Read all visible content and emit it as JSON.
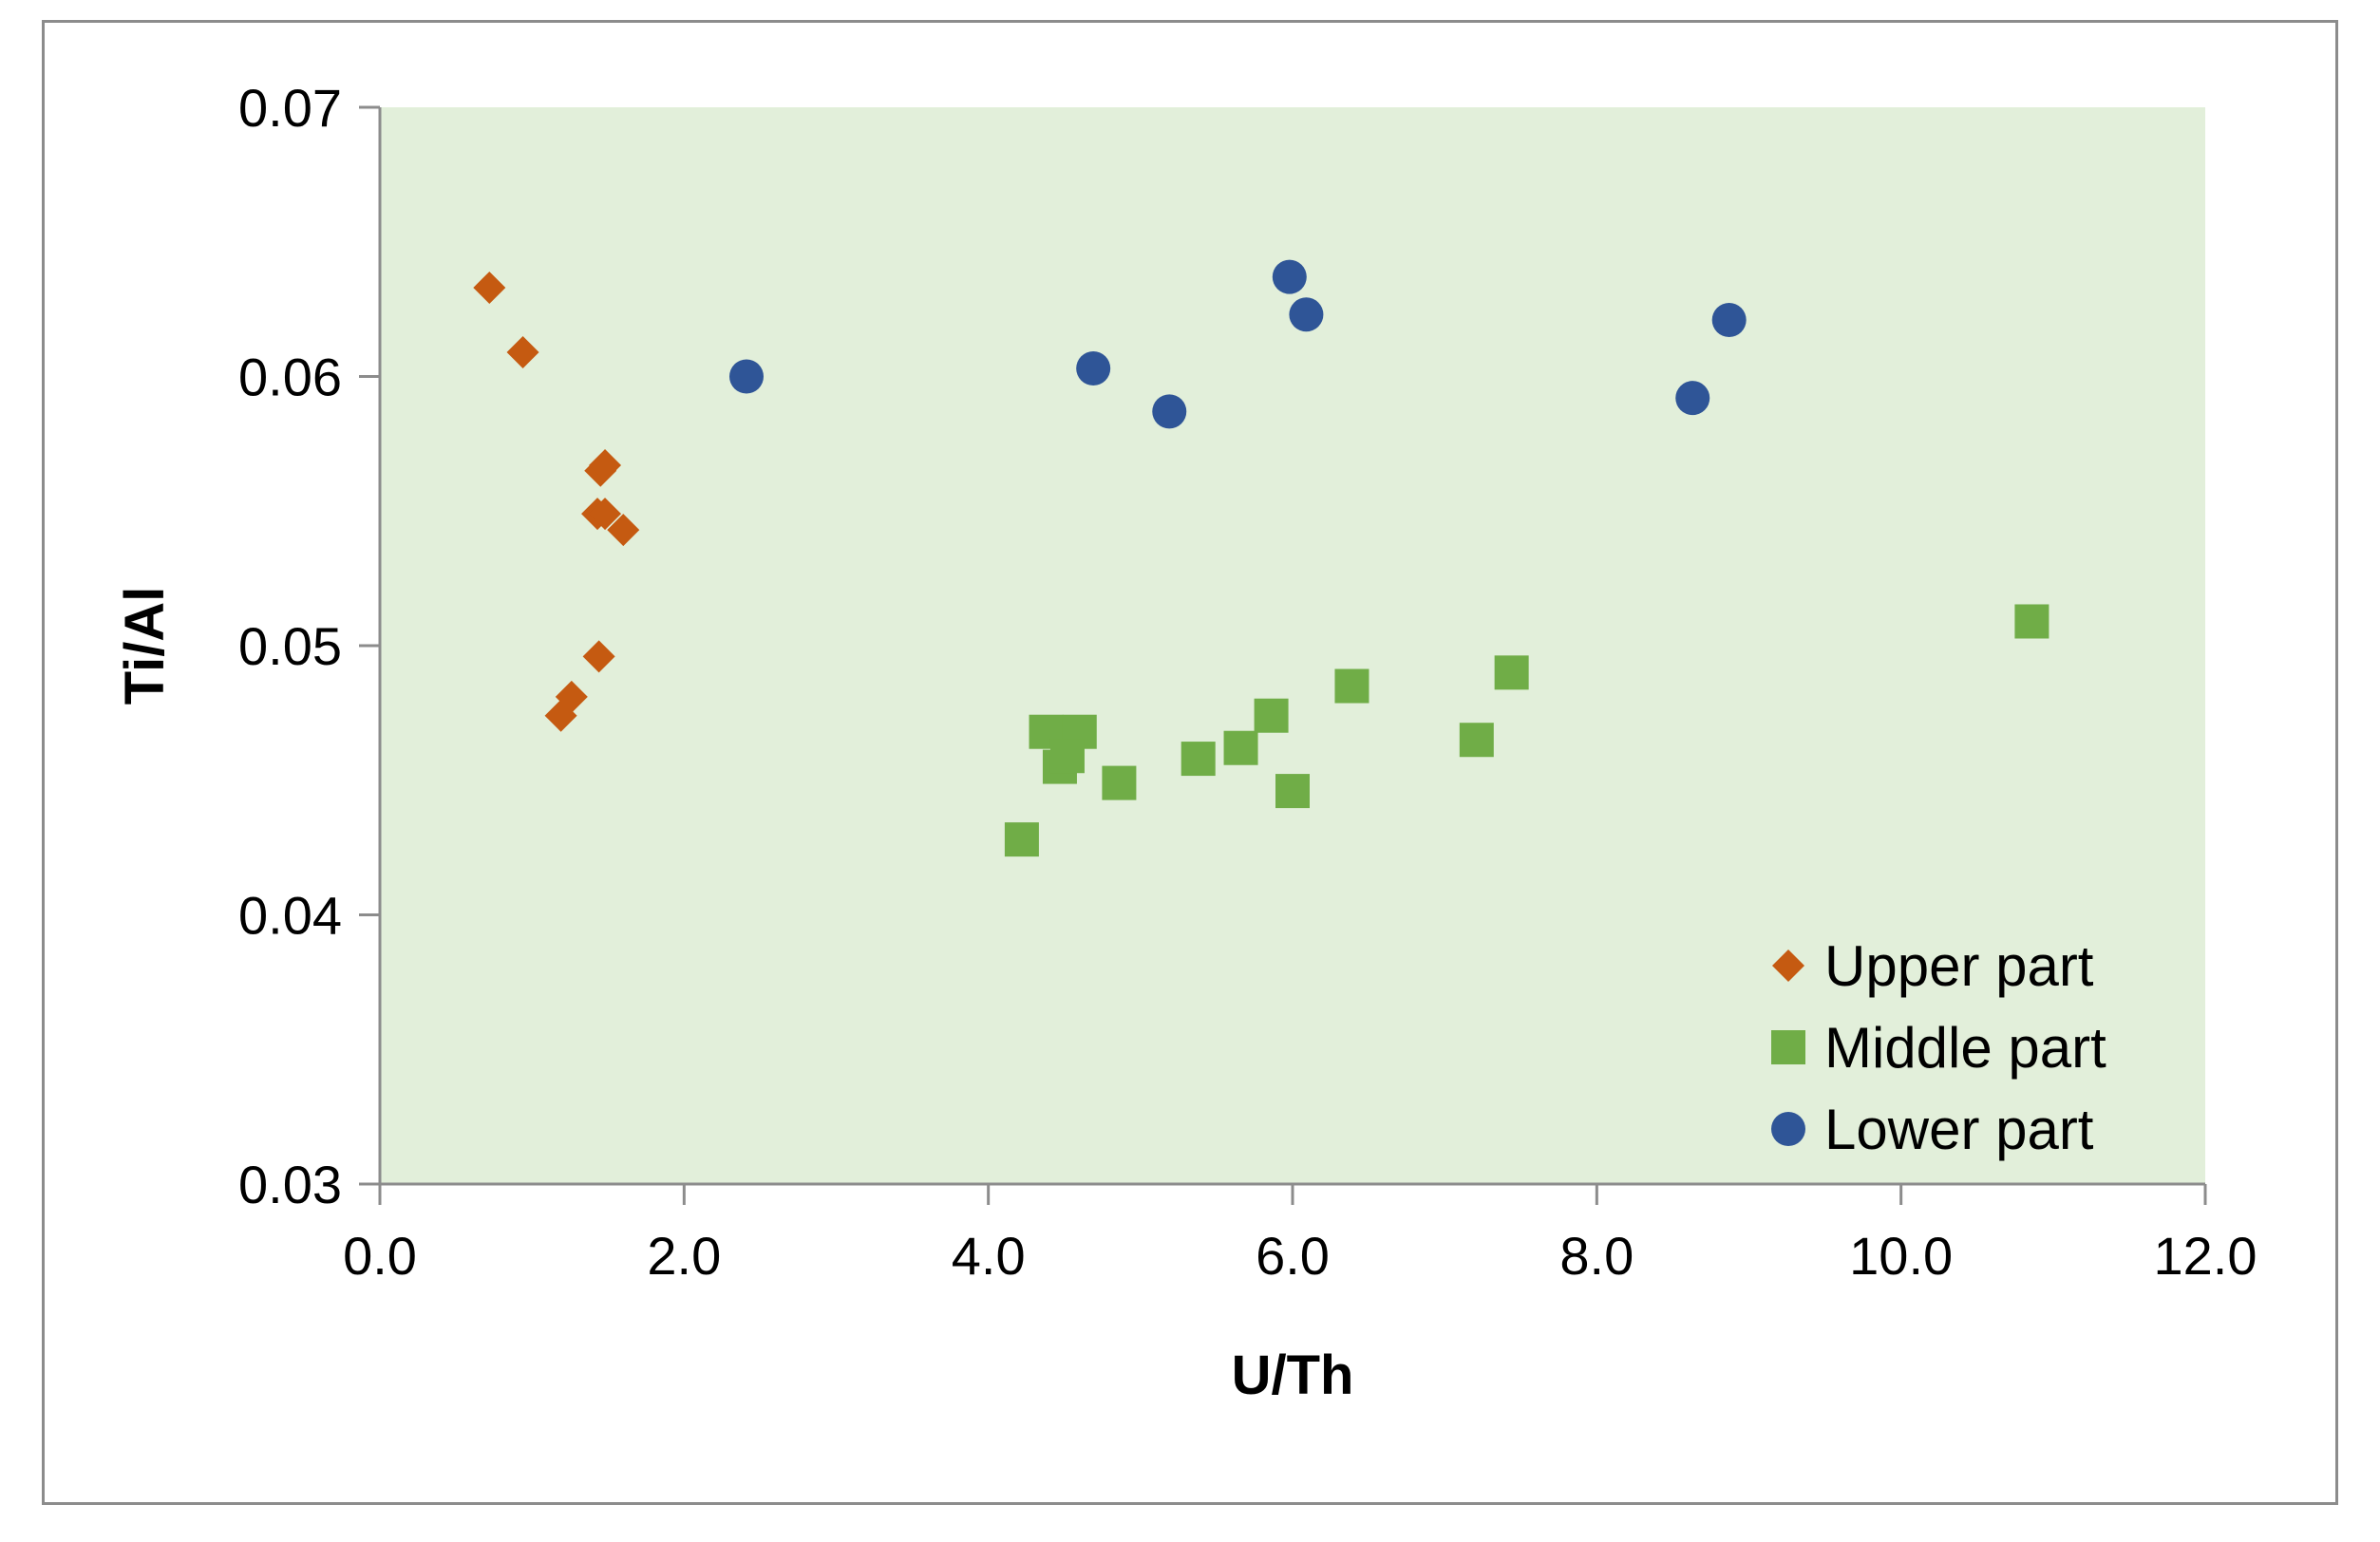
{
  "chart_data": {
    "type": "scatter",
    "xlabel": "U/Th",
    "ylabel": "Ti/Al",
    "xlim": [
      0,
      12
    ],
    "ylim": [
      0.03,
      0.07
    ],
    "x_ticks": [
      "0.0",
      "2.0",
      "4.0",
      "6.0",
      "8.0",
      "10.0",
      "12.0"
    ],
    "y_ticks": [
      "0.03",
      "0.04",
      "0.05",
      "0.06",
      "0.07"
    ],
    "x_tick_values": [
      0,
      2,
      4,
      6,
      8,
      10,
      12
    ],
    "y_tick_values": [
      0.03,
      0.04,
      0.05,
      0.06,
      0.07
    ],
    "plot_background": "#e2efda",
    "grid": false,
    "legend_position": "bottom-right",
    "series": [
      {
        "name": "Upper part",
        "marker": "diamond",
        "color": "#c55a11",
        "points": [
          [
            0.72,
            0.0633
          ],
          [
            0.94,
            0.0609
          ],
          [
            1.45,
            0.0565
          ],
          [
            1.48,
            0.0567
          ],
          [
            1.43,
            0.0549
          ],
          [
            1.48,
            0.0549
          ],
          [
            1.6,
            0.0543
          ],
          [
            1.44,
            0.0496
          ],
          [
            1.26,
            0.0481
          ],
          [
            1.19,
            0.0474
          ]
        ]
      },
      {
        "name": "Middle part",
        "marker": "square",
        "color": "#70ad47",
        "points": [
          [
            4.22,
            0.0428
          ],
          [
            4.38,
            0.0468
          ],
          [
            4.6,
            0.0468
          ],
          [
            4.47,
            0.0455
          ],
          [
            4.52,
            0.0459
          ],
          [
            4.86,
            0.0449
          ],
          [
            5.38,
            0.0458
          ],
          [
            5.66,
            0.0462
          ],
          [
            5.86,
            0.0474
          ],
          [
            6.0,
            0.0446
          ],
          [
            6.39,
            0.0485
          ],
          [
            7.21,
            0.0465
          ],
          [
            7.44,
            0.049
          ],
          [
            10.86,
            0.0509
          ]
        ]
      },
      {
        "name": "Lower part",
        "marker": "circle",
        "color": "#2f5597",
        "points": [
          [
            2.41,
            0.06
          ],
          [
            4.69,
            0.0603
          ],
          [
            5.19,
            0.0587
          ],
          [
            5.98,
            0.0637
          ],
          [
            6.09,
            0.0623
          ],
          [
            8.63,
            0.0592
          ],
          [
            8.87,
            0.0621
          ]
        ]
      }
    ]
  }
}
